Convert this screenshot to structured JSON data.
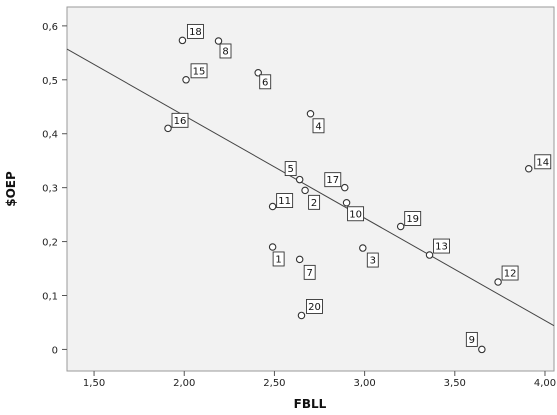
{
  "chart_data": {
    "type": "scatter",
    "title": "",
    "xlabel": "FBLL",
    "ylabel": "$OEP",
    "xlim": [
      1.35,
      4.05
    ],
    "ylim": [
      -0.04,
      0.635
    ],
    "xticks": [
      "1,50",
      "2,00",
      "2,50",
      "3,00",
      "3,50",
      "4,00"
    ],
    "xtick_values": [
      1.5,
      2.0,
      2.5,
      3.0,
      3.5,
      4.0
    ],
    "yticks": [
      "0",
      "0,1",
      "0,2",
      "0,3",
      "0,4",
      "0,5",
      "0,6"
    ],
    "ytick_values": [
      0,
      0.1,
      0.2,
      0.3,
      0.4,
      0.5,
      0.6
    ],
    "grid": false,
    "background": "#f2f2f2",
    "point_color": "#333333",
    "fit_line": {
      "x": [
        1.35,
        4.05
      ],
      "y": [
        0.557,
        0.044
      ]
    },
    "points": [
      {
        "label": "1",
        "x": 2.49,
        "y": 0.19
      },
      {
        "label": "2",
        "x": 2.67,
        "y": 0.295
      },
      {
        "label": "3",
        "x": 2.99,
        "y": 0.188
      },
      {
        "label": "5",
        "x": 2.64,
        "y": 0.315
      },
      {
        "label": "6",
        "x": 2.41,
        "y": 0.513
      },
      {
        "label": "7",
        "x": 2.64,
        "y": 0.167
      },
      {
        "label": "8",
        "x": 2.19,
        "y": 0.572
      },
      {
        "label": "9",
        "x": 3.65,
        "y": 0.0
      },
      {
        "label": "10",
        "x": 2.9,
        "y": 0.272
      },
      {
        "label": "11",
        "x": 2.49,
        "y": 0.265
      },
      {
        "label": "12",
        "x": 3.74,
        "y": 0.125
      },
      {
        "label": "13",
        "x": 3.36,
        "y": 0.175
      },
      {
        "label": "14",
        "x": 3.91,
        "y": 0.335
      },
      {
        "label": "15",
        "x": 2.01,
        "y": 0.5
      },
      {
        "label": "16",
        "x": 1.91,
        "y": 0.41
      },
      {
        "label": "17",
        "x": 2.89,
        "y": 0.3
      },
      {
        "label": "18",
        "x": 1.99,
        "y": 0.573
      },
      {
        "label": "19",
        "x": 3.2,
        "y": 0.228
      },
      {
        "label": "20",
        "x": 2.65,
        "y": 0.063
      },
      {
        "label": "4",
        "x": 2.7,
        "y": 0.437
      }
    ],
    "label_offsets": {
      "1": [
        6,
        12
      ],
      "2": [
        9,
        12
      ],
      "3": [
        10,
        12
      ],
      "5": [
        -9,
        -11
      ],
      "6": [
        7,
        9
      ],
      "7": [
        10,
        13
      ],
      "8": [
        7,
        10
      ],
      "9": [
        -10,
        -10
      ],
      "10": [
        9,
        11
      ],
      "11": [
        12,
        -6
      ],
      "12": [
        12,
        -9
      ],
      "13": [
        12,
        -9
      ],
      "14": [
        14,
        -7
      ],
      "15": [
        13,
        -9
      ],
      "16": [
        12,
        -8
      ],
      "17": [
        -12,
        -8
      ],
      "18": [
        13,
        -9
      ],
      "19": [
        12,
        -8
      ],
      "20": [
        13,
        -9
      ],
      "4": [
        8,
        12
      ]
    }
  }
}
